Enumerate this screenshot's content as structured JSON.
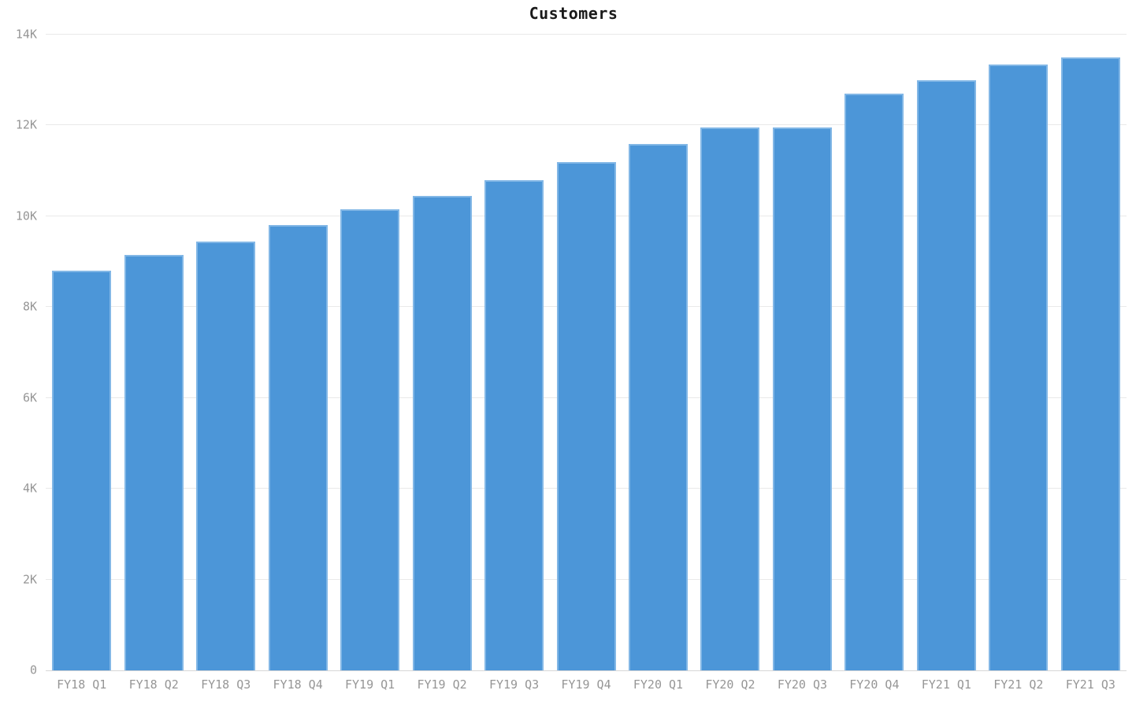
{
  "page": {
    "background": "#ffffff"
  },
  "chart": {
    "colors": {
      "bar_fill": "#4c96d8",
      "bar_edge": "#82b7e6",
      "gridline": "#e9e9e9",
      "axis_line": "#d6d6d6",
      "tick_label": "#969696",
      "title": "#1a1a1a"
    }
  },
  "chart_data": {
    "type": "bar",
    "title": "Customers",
    "xlabel": "",
    "ylabel": "",
    "categories": [
      "FY18 Q1",
      "FY18 Q2",
      "FY18 Q3",
      "FY18 Q4",
      "FY19 Q1",
      "FY19 Q2",
      "FY19 Q3",
      "FY19 Q4",
      "FY20 Q1",
      "FY20 Q2",
      "FY20 Q3",
      "FY20 Q4",
      "FY21 Q1",
      "FY21 Q2",
      "FY21 Q3"
    ],
    "values": [
      8800,
      9150,
      9450,
      9800,
      10150,
      10450,
      10800,
      11200,
      11600,
      11950,
      11950,
      12700,
      13000,
      13350,
      13500
    ],
    "ylim": [
      0,
      14000
    ],
    "yticks": [
      {
        "label": "0",
        "value": 0
      },
      {
        "label": "2K",
        "value": 2000
      },
      {
        "label": "4K",
        "value": 4000
      },
      {
        "label": "6K",
        "value": 6000
      },
      {
        "label": "8K",
        "value": 8000
      },
      {
        "label": "10K",
        "value": 10000
      },
      {
        "label": "12K",
        "value": 12000
      },
      {
        "label": "14K",
        "value": 14000
      }
    ],
    "grid": true,
    "legend": false
  }
}
